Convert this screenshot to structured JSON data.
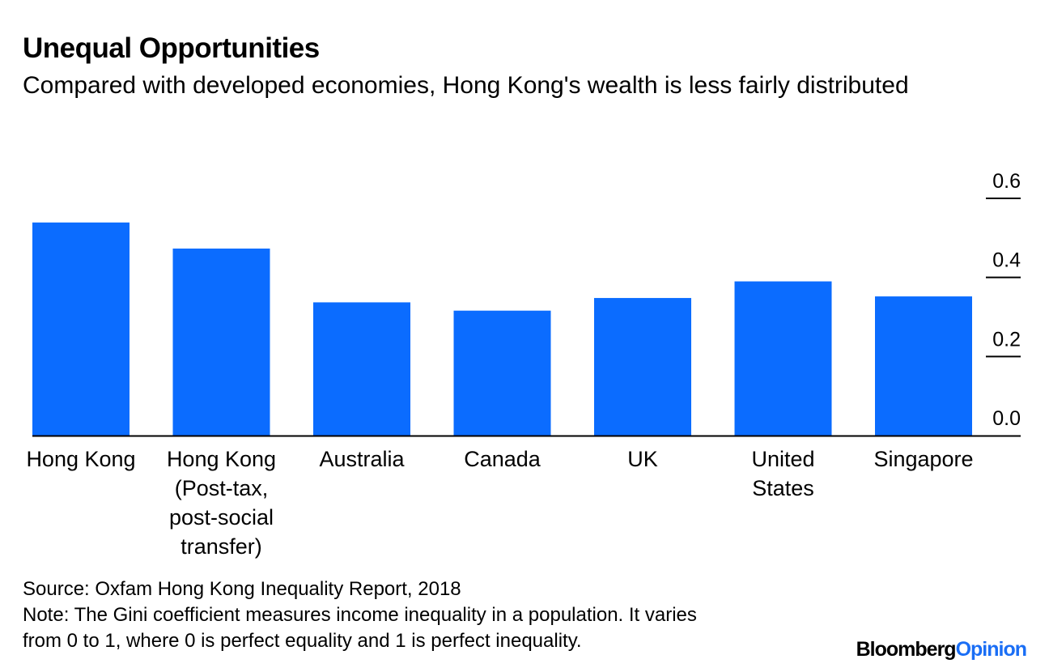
{
  "header": {
    "title": "Unequal Opportunities",
    "subtitle": "Compared with developed economies, Hong Kong's wealth is less fairly distributed"
  },
  "chart_data": {
    "type": "bar",
    "categories": [
      [
        "Hong Kong"
      ],
      [
        "Hong Kong",
        "(Post-tax,",
        "post-social",
        "transfer)"
      ],
      [
        "Australia"
      ],
      [
        "Canada"
      ],
      [
        "UK"
      ],
      [
        "United",
        "States"
      ],
      [
        "Singapore"
      ]
    ],
    "values": [
      0.539,
      0.473,
      0.337,
      0.316,
      0.348,
      0.39,
      0.352
    ],
    "ylim": [
      0,
      0.6
    ],
    "yticks": [
      "0.0",
      "0.2",
      "0.4",
      "0.6"
    ],
    "ytick_values": [
      0,
      0.2,
      0.4,
      0.6
    ],
    "y_axis_side": "right",
    "grid": false,
    "bar_color": "#0b6cff"
  },
  "footer": {
    "source": "Source: Oxfam Hong Kong Inequality Report, 2018",
    "note_line1": "Note: The Gini coefficient measures income inequality in a population. It varies",
    "note_line2": "from 0 to 1, where 0 is perfect equality and 1 is perfect inequality.",
    "brand_part1": "Bloomberg",
    "brand_part2": "Opinion"
  }
}
